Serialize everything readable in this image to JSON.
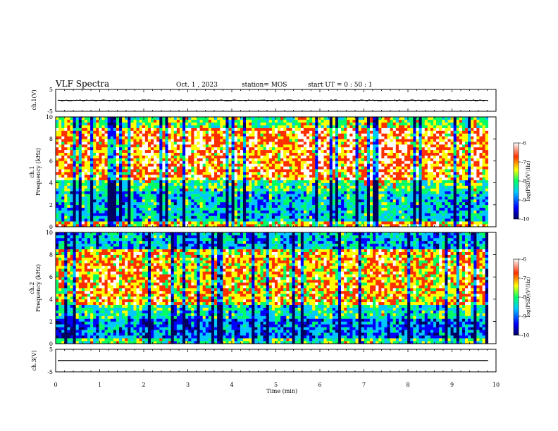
{
  "header": {
    "title": "VLF Spectra",
    "date": "Oct. 1 , 2023",
    "station": "station= MOS",
    "start": "start  UT =   0 : 50 : 1"
  },
  "chart_data": {
    "type": "heatmap",
    "x_axis": {
      "label": "Time  (min)",
      "range": [
        0,
        10
      ],
      "ticks": [
        "0",
        "1",
        "2",
        "3",
        "4",
        "5",
        "6",
        "7",
        "8",
        "9",
        "10"
      ]
    },
    "panels": [
      {
        "id": "ch1-waveform",
        "ylabel": "ch.1(V)",
        "ylim": [
          -5,
          5
        ],
        "ticks": [
          "5",
          "-5"
        ],
        "type": "line",
        "level": 0
      },
      {
        "id": "ch1-spectrogram",
        "ylabel": "ch.1\nFrequency  (kHz)",
        "ylim": [
          0,
          10
        ],
        "ticks": [
          "0",
          "2",
          "4",
          "6",
          "8",
          "10"
        ],
        "type": "heatmap",
        "colorbar": {
          "label": "log(PSD)(V²/Hz)",
          "range": [
            -10,
            -6
          ],
          "ticks": [
            "-6",
            "-7",
            "-8",
            "-9",
            "-10"
          ]
        }
      },
      {
        "id": "ch2-spectrogram",
        "ylabel": "ch.2\nFrequency  (kHz)",
        "ylim": [
          0,
          10
        ],
        "ticks": [
          "0",
          "2",
          "4",
          "6",
          "8",
          "10"
        ],
        "type": "heatmap",
        "colorbar": {
          "label": "log(PSD)(V²/Hz)",
          "range": [
            -10,
            -6
          ],
          "ticks": [
            "-6",
            "-7",
            "-8",
            "-9",
            "-10"
          ]
        }
      },
      {
        "id": "ch3-waveform",
        "ylabel": "ch.3(V)",
        "ylim": [
          -5,
          5
        ],
        "ticks": [
          "5",
          "-5"
        ],
        "type": "line",
        "level": 0
      }
    ],
    "data_end_min": 9.82,
    "colormap": [
      "#000060",
      "#0000ff",
      "#00c8ff",
      "#00ff66",
      "#ffff00",
      "#ff3000",
      "#ffffff"
    ]
  }
}
